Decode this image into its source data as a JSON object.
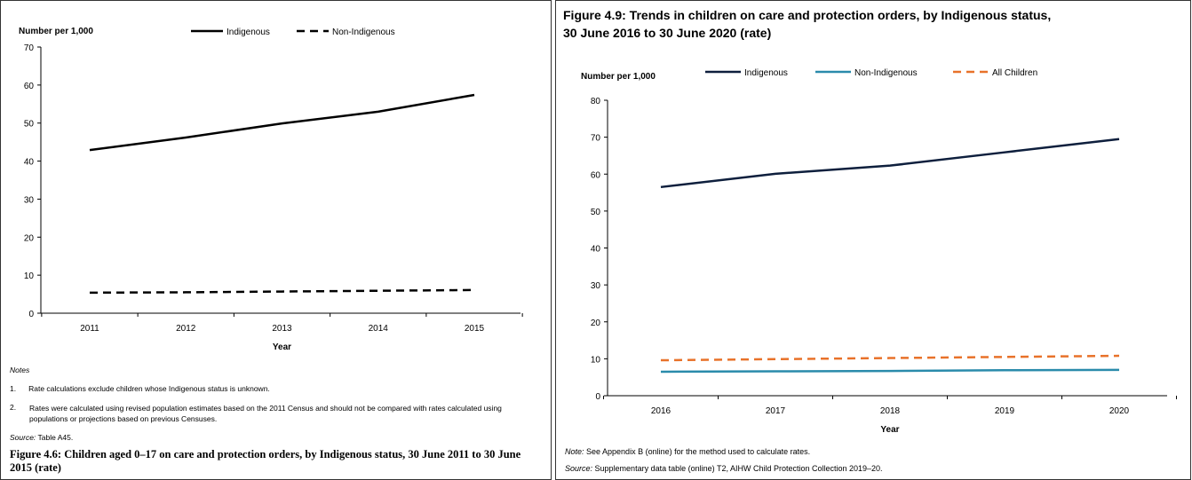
{
  "chart_data": [
    {
      "type": "line",
      "title": "Figure 4.6: Children aged 0–17 on care and protection orders, by Indigenous status, 30 June 2011 to 30 June 2015 (rate)",
      "xlabel": "Year",
      "ylabel": "Number per 1,000",
      "ylim": [
        0,
        70
      ],
      "yticks": [
        0,
        10,
        20,
        30,
        40,
        50,
        60,
        70
      ],
      "categories": [
        "2011",
        "2012",
        "2013",
        "2014",
        "2015"
      ],
      "series": [
        {
          "name": "Indigenous",
          "values": [
            42.9,
            46.2,
            49.9,
            53.0,
            57.4
          ],
          "color": "#000000",
          "dash": false
        },
        {
          "name": "Non-Indigenous",
          "values": [
            5.4,
            5.5,
            5.7,
            5.9,
            6.1
          ],
          "color": "#000000",
          "dash": true
        }
      ],
      "legend": "top",
      "grid": false
    },
    {
      "type": "line",
      "title": "Figure 4.9: Trends in children on care and protection orders, by Indigenous status, 30 June 2016 to 30 June 2020 (rate)",
      "xlabel": "Year",
      "ylabel": "Number per 1,000",
      "ylim": [
        0,
        80
      ],
      "yticks": [
        0,
        10,
        20,
        30,
        40,
        50,
        60,
        70,
        80
      ],
      "categories": [
        "2016",
        "2017",
        "2018",
        "2019",
        "2020"
      ],
      "series": [
        {
          "name": "Indigenous",
          "values": [
            56.5,
            60.1,
            62.3,
            65.9,
            69.5
          ],
          "color": "#0e1f3d",
          "dash": false
        },
        {
          "name": "Non-Indigenous",
          "values": [
            6.5,
            6.6,
            6.7,
            6.9,
            7.0
          ],
          "color": "#2a8bab",
          "dash": false
        },
        {
          "name": "All Children",
          "values": [
            9.6,
            9.9,
            10.2,
            10.5,
            10.8
          ],
          "color": "#e8722a",
          "dash": true
        }
      ],
      "legend": "top",
      "grid": false
    }
  ],
  "left": {
    "notes_heading": "Notes",
    "note1_num": "1.",
    "note1": "Rate calculations exclude children whose Indigenous status is unknown.",
    "note2_num": "2.",
    "note2": "Rates were calculated using revised population estimates based on the 2011 Census and should not be compared with rates calculated using populations or projections based on previous Censuses.",
    "source_label": "Source:",
    "source": " Table A45."
  },
  "right": {
    "note_label": "Note:",
    "note": " See Appendix B (online) for the method used to calculate rates.",
    "source_label": "Source:",
    "source": " Supplementary data table (online) T2, AIHW Child Protection Collection 2019–20."
  }
}
